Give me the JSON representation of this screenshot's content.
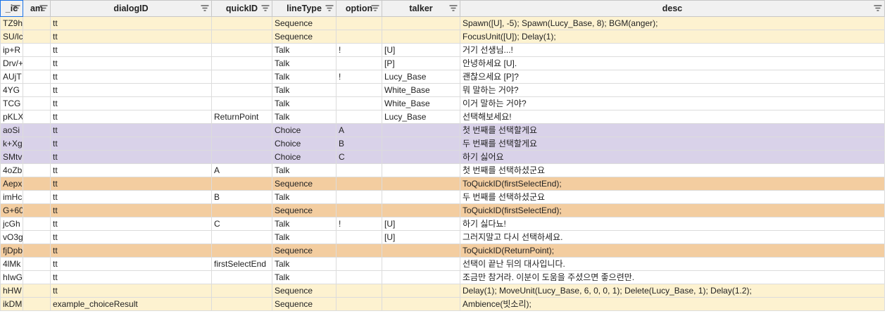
{
  "columns": [
    {
      "label": "_ic"
    },
    {
      "label": "am"
    },
    {
      "label": "dialogID"
    },
    {
      "label": "quickID"
    },
    {
      "label": "lineType"
    },
    {
      "label": "option"
    },
    {
      "label": "talker"
    },
    {
      "label": "desc"
    }
  ],
  "colors": {
    "white": "#ffffff",
    "cream": "#fdf2d0",
    "purple": "#d9d2e9",
    "orange": "#f3cda0"
  },
  "rows": [
    {
      "bg": "cream",
      "cells": [
        "TZ9h",
        "",
        "tt",
        "",
        "Sequence",
        "",
        "",
        "Spawn([U], -5); Spawn(Lucy_Base, 8); BGM(anger);"
      ]
    },
    {
      "bg": "cream",
      "cells": [
        "SU/lc",
        "",
        "tt",
        "",
        "Sequence",
        "",
        "",
        "FocusUnit([U]); Delay(1);"
      ]
    },
    {
      "bg": "white",
      "cells": [
        "ip+R",
        "",
        "tt",
        "",
        "Talk",
        "!",
        "[U]",
        "거기 선생님...!"
      ]
    },
    {
      "bg": "white",
      "cells": [
        "Drv/+",
        "",
        "tt",
        "",
        "Talk",
        "",
        "[P]",
        "안녕하세요 [U]."
      ]
    },
    {
      "bg": "white",
      "cells": [
        "AUjT",
        "",
        "tt",
        "",
        "Talk",
        "!",
        "Lucy_Base",
        "괜찮으세요 [P]?"
      ]
    },
    {
      "bg": "white",
      "cells": [
        "4YG",
        "",
        "tt",
        "",
        "Talk",
        "",
        "White_Base",
        "뭐 말하는 거야?"
      ]
    },
    {
      "bg": "white",
      "cells": [
        "TCG",
        "",
        "tt",
        "",
        "Talk",
        "",
        "White_Base",
        "이거 말하는 거야?"
      ]
    },
    {
      "bg": "white",
      "cells": [
        "pKLX",
        "",
        "tt",
        "ReturnPoint",
        "Talk",
        "",
        "Lucy_Base",
        "선택해보세요!"
      ]
    },
    {
      "bg": "purple",
      "cells": [
        "aoSi",
        "",
        "tt",
        "",
        "Choice",
        "A",
        "",
        "첫 번째를 선택할게요"
      ]
    },
    {
      "bg": "purple",
      "cells": [
        "k+Xg",
        "",
        "tt",
        "",
        "Choice",
        "B",
        "",
        "두 번째를 선택할게요"
      ]
    },
    {
      "bg": "purple",
      "cells": [
        "SMtv",
        "",
        "tt",
        "",
        "Choice",
        "C",
        "",
        "하기 싫어요"
      ]
    },
    {
      "bg": "white",
      "cells": [
        "4oZb",
        "",
        "tt",
        "A",
        "Talk",
        "",
        "",
        "첫 번째를 선택하셨군요"
      ]
    },
    {
      "bg": "orange",
      "cells": [
        "Aepx",
        "",
        "tt",
        "",
        "Sequence",
        "",
        "",
        "ToQuickID(firstSelectEnd);"
      ]
    },
    {
      "bg": "white",
      "cells": [
        "imHc",
        "",
        "tt",
        "B",
        "Talk",
        "",
        "",
        "두 번째를 선택하셨군요"
      ]
    },
    {
      "bg": "orange",
      "cells": [
        "G+60",
        "",
        "tt",
        "",
        "Sequence",
        "",
        "",
        "ToQuickID(firstSelectEnd);"
      ]
    },
    {
      "bg": "white",
      "cells": [
        "jcGh",
        "",
        "tt",
        "C",
        "Talk",
        "!",
        "[U]",
        "하기 싫다뇨!"
      ]
    },
    {
      "bg": "white",
      "cells": [
        "vO3g",
        "",
        "tt",
        "",
        "Talk",
        "",
        "[U]",
        "그러지말고 다시 선택하세요."
      ]
    },
    {
      "bg": "orange",
      "cells": [
        "fjDpb",
        "",
        "tt",
        "",
        "Sequence",
        "",
        "",
        "ToQuickID(ReturnPoint);"
      ]
    },
    {
      "bg": "white",
      "cells": [
        "4lMk",
        "",
        "tt",
        "firstSelectEnd",
        "Talk",
        "",
        "",
        "선택이 끝난 뒤의 대사입니다."
      ]
    },
    {
      "bg": "white",
      "cells": [
        "hIwG",
        "",
        "tt",
        "",
        "Talk",
        "",
        "",
        "조금만 참거라. 이분이 도움을 주셨으면 좋으련만."
      ]
    },
    {
      "bg": "cream",
      "cells": [
        "hHW",
        "",
        "tt",
        "",
        "Sequence",
        "",
        "",
        "Delay(1); MoveUnit(Lucy_Base, 6, 0, 0, 1); Delete(Lucy_Base, 1); Delay(1.2);"
      ]
    },
    {
      "bg": "cream",
      "cells": [
        "ikDM",
        "",
        "example_choiceResult",
        "",
        "Sequence",
        "",
        "",
        "Ambience(빗소리);"
      ]
    }
  ]
}
